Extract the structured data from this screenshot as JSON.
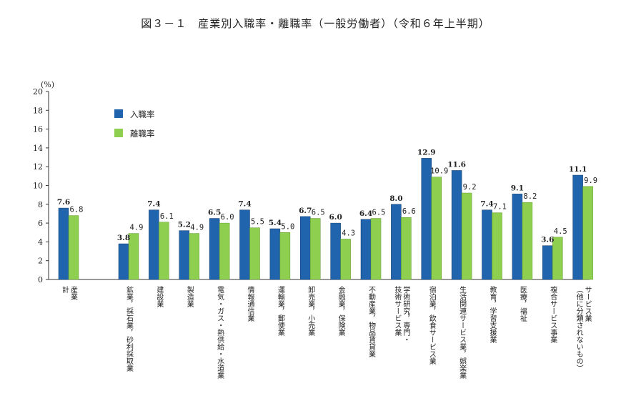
{
  "chart_data": {
    "type": "bar",
    "title": "図３－１　産業別入職率・離職率（一般労働者）（令和６年上半期）",
    "unit_label": "(%)",
    "ylim": [
      0,
      20
    ],
    "yticks": [
      "0",
      "2",
      "4",
      "6",
      "8",
      "10",
      "12",
      "14",
      "16",
      "18",
      "20"
    ],
    "grid": false,
    "legend_position": "top-left",
    "colors": {
      "entry": "#1f64ad",
      "exit": "#8fcf4f"
    },
    "categories": [
      [
        "産業",
        "計"
      ],
      [
        "鉱業，採石業，砂利採取業"
      ],
      [
        "建設業"
      ],
      [
        "製造業"
      ],
      [
        "電気・ガス・熱供給・水道業"
      ],
      [
        "情報通信業"
      ],
      [
        "運輸業，郵便業"
      ],
      [
        "卸売業，小売業"
      ],
      [
        "金融業，保険業"
      ],
      [
        "不動産業，物品賃貸業"
      ],
      [
        "学術研究，専門・",
        "技術サービス業"
      ],
      [
        "宿泊業，飲食サービス業"
      ],
      [
        "生活関連サービス業，娯楽業"
      ],
      [
        "教育，学習支援業"
      ],
      [
        "医療，福祉"
      ],
      [
        "複合サービス事業"
      ],
      [
        "サービス業",
        "（他に分類されないもの）"
      ]
    ],
    "series": [
      {
        "name": "入職率",
        "values": [
          7.6,
          3.8,
          7.4,
          5.2,
          6.5,
          7.4,
          5.4,
          6.7,
          6.0,
          6.4,
          8.0,
          12.9,
          11.6,
          7.4,
          9.1,
          3.6,
          11.1
        ]
      },
      {
        "name": "離職率",
        "values": [
          6.8,
          4.9,
          6.1,
          4.9,
          6.0,
          5.5,
          5.0,
          6.5,
          4.3,
          6.5,
          6.6,
          10.9,
          9.2,
          7.1,
          8.2,
          4.5,
          9.9
        ]
      }
    ],
    "value_labels": {
      "entry": [
        "7.6",
        "3.8",
        "7.4",
        "5.2",
        "6.5",
        "7.4",
        "5.4",
        "6.7",
        "6.0",
        "6.4",
        "8.0",
        "12.9",
        "11.6",
        "7.4",
        "9.1",
        "3.6",
        "11.1"
      ],
      "exit": [
        "6.8",
        "4.9",
        "6.1",
        "4.9",
        "6.0",
        "5.5",
        "5.0",
        "6.5",
        "4.3",
        "6.5",
        "6.6",
        "10.9",
        "9.2",
        "7.1",
        "8.2",
        "4.5",
        "9.9"
      ]
    }
  }
}
